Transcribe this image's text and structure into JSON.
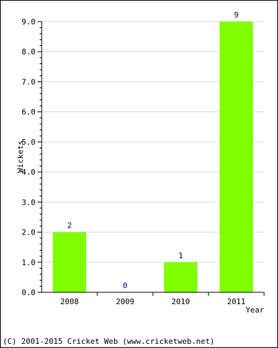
{
  "chart_data": {
    "type": "bar",
    "categories": [
      "2008",
      "2009",
      "2010",
      "2011"
    ],
    "values": [
      2,
      0,
      1,
      9
    ],
    "data_labels": [
      "2",
      "0",
      "1",
      "9"
    ],
    "xlabel": "Year",
    "ylabel": "Wickets",
    "ylim": [
      0,
      9
    ],
    "yticks": [
      "0.0",
      "1.0",
      "2.0",
      "3.0",
      "4.0",
      "5.0",
      "6.0",
      "7.0",
      "8.0",
      "9.0"
    ],
    "grid": true,
    "legend": "none",
    "colors": {
      "bar": "#80ff00",
      "data_label": "#000080",
      "grid": "#d9d9d9",
      "axis": "#000000"
    }
  },
  "footer": {
    "copyright": "(C) 2001-2015 Cricket Web (www.cricketweb.net)"
  }
}
